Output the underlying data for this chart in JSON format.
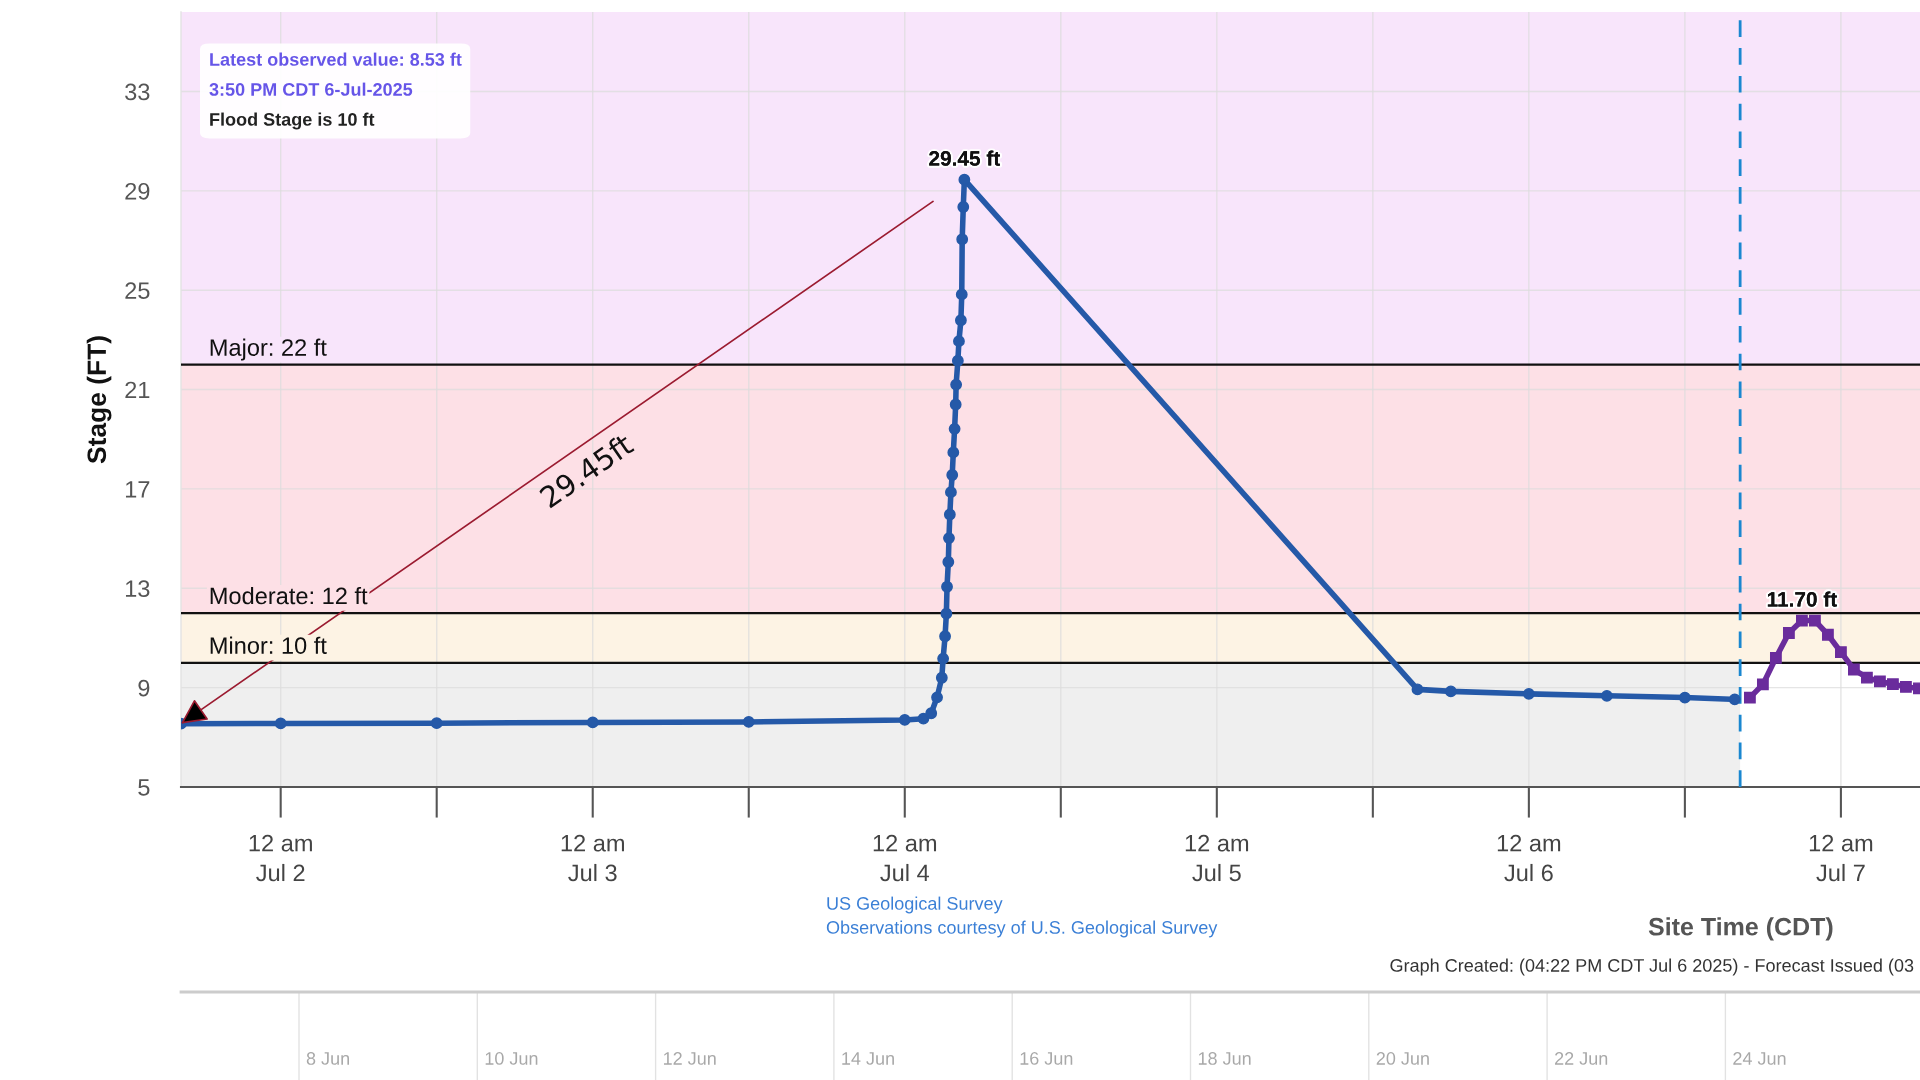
{
  "chart_data": [
    {
      "type": "line",
      "xlabel": "Site Time (CDT)",
      "ylabel": "Stage (FT)",
      "annotations": [
        "Latest observed value: 8.53 ft",
        "3:50 PM CDT 6-Jul-2025",
        "Flood Stage is 10 ft",
        "US Geological Survey",
        "Observations courtesy of U.S. Geological Survey",
        "Graph Created: (04:22 PM CDT Jul 6 2025) - Forecast Issued (03",
        "29.45ft"
      ],
      "series": [
        {
          "color": "#2559a8",
          "marker": "circle",
          "x": [
            "2025-07-01T16:20",
            "2025-07-02T00:00",
            "2025-07-02T12:00",
            "2025-07-03T00:00",
            "2025-07-03T12:00",
            "2025-07-04T00:00",
            "2025-07-04T01:26",
            "2025-07-04T02:02",
            "2025-07-04T02:29",
            "2025-07-04T02:51",
            "2025-07-04T02:57",
            "2025-07-04T03:06",
            "2025-07-04T03:12",
            "2025-07-04T03:15",
            "2025-07-04T03:21",
            "2025-07-04T03:24",
            "2025-07-04T03:28",
            "2025-07-04T03:33",
            "2025-07-04T03:39",
            "2025-07-04T03:44",
            "2025-07-04T03:50",
            "2025-07-04T03:55",
            "2025-07-04T03:57",
            "2025-07-04T04:05",
            "2025-07-04T04:10",
            "2025-07-04T04:19",
            "2025-07-04T04:23",
            "2025-07-04T04:25",
            "2025-07-04T04:30",
            "2025-07-04T04:35",
            "2025-07-05T15:26",
            "2025-07-05T18:00",
            "2025-07-06T00:00",
            "2025-07-06T06:00",
            "2025-07-06T12:00",
            "2025-07-06T15:50"
          ],
          "values": [
            7.55,
            7.56,
            7.57,
            7.6,
            7.62,
            7.7,
            7.75,
            7.97,
            8.61,
            9.4,
            10.17,
            11.07,
            11.98,
            13.06,
            14.06,
            15.02,
            15.97,
            16.87,
            17.56,
            18.47,
            19.42,
            20.4,
            21.2,
            22.16,
            22.95,
            23.79,
            24.83,
            27.05,
            28.35,
            29.45,
            8.93,
            8.85,
            8.75,
            8.67,
            8.6,
            8.53
          ],
          "value_labels": [
            null,
            null,
            null,
            null,
            null,
            null,
            null,
            null,
            null,
            null,
            null,
            null,
            null,
            null,
            null,
            null,
            null,
            null,
            null,
            null,
            null,
            null,
            null,
            null,
            null,
            null,
            null,
            null,
            null,
            "29.45 ft",
            null,
            null,
            null,
            null,
            null,
            null
          ]
        },
        {
          "color": "#6a2c9c",
          "marker": "square",
          "x": [
            "2025-07-06T17:00",
            "2025-07-06T18:00",
            "2025-07-06T19:00",
            "2025-07-06T20:00",
            "2025-07-06T21:00",
            "2025-07-06T22:00",
            "2025-07-06T23:00",
            "2025-07-07T00:00",
            "2025-07-07T01:00",
            "2025-07-07T02:00",
            "2025-07-07T03:00",
            "2025-07-07T04:00",
            "2025-07-07T05:00",
            "2025-07-07T06:00"
          ],
          "values": [
            8.6,
            9.13,
            10.2,
            11.2,
            11.7,
            11.7,
            11.13,
            10.43,
            9.73,
            9.4,
            9.25,
            9.14,
            9.03,
            8.97
          ],
          "value_labels": [
            null,
            null,
            null,
            null,
            "11.70 ft",
            null,
            null,
            null,
            null,
            null,
            null,
            null,
            null,
            null
          ]
        }
      ],
      "xlim": [
        "2025-07-01T16:20",
        "2025-07-07T06:05"
      ],
      "xticks": [
        {
          "value": "2025-07-02T00:00",
          "label": "12 am\nJul 2"
        },
        {
          "value": "2025-07-02T12:00",
          "label": null
        },
        {
          "value": "2025-07-03T00:00",
          "label": "12 am\nJul 3"
        },
        {
          "value": "2025-07-03T12:00",
          "label": null
        },
        {
          "value": "2025-07-04T00:00",
          "label": "12 am\nJul 4"
        },
        {
          "value": "2025-07-04T12:00",
          "label": null
        },
        {
          "value": "2025-07-05T00:00",
          "label": "12 am\nJul 5"
        },
        {
          "value": "2025-07-05T12:00",
          "label": null
        },
        {
          "value": "2025-07-06T00:00",
          "label": "12 am\nJul 6"
        },
        {
          "value": "2025-07-06T12:00",
          "label": null
        },
        {
          "value": "2025-07-07T00:00",
          "label": "12 am\nJul 7"
        }
      ],
      "ylim": [
        5,
        36.2
      ],
      "yticks": [
        5,
        9,
        13,
        17,
        21,
        25,
        29,
        33
      ],
      "grid": true,
      "ref_lines": [
        {
          "axis": "y",
          "value": 22,
          "label": "Major: 22 ft",
          "color": "#111111"
        },
        {
          "axis": "y",
          "value": 12,
          "label": "Moderate: 12 ft",
          "color": "#111111"
        },
        {
          "axis": "y",
          "value": 10,
          "label": "Minor: 10 ft",
          "color": "#111111"
        },
        {
          "axis": "x",
          "value": "2025-07-06T16:15",
          "color": "#1a87d0",
          "line_style": "dashed"
        }
      ],
      "bands": [
        {
          "axis": "x",
          "from": "2025-07-01T16:20",
          "to": "2025-07-06T16:15",
          "color": "#efefef"
        },
        {
          "axis": "y",
          "from": 10,
          "to": 12,
          "color": "#fdf3e4"
        },
        {
          "axis": "y",
          "from": 12,
          "to": 22,
          "color": "#fde0e6"
        },
        {
          "axis": "y",
          "from": 22,
          "to": 36.2,
          "color": "#f8e5fb"
        }
      ]
    },
    {
      "type": "other",
      "annotations": [
        "8 Jun",
        "10 Jun",
        "12 Jun",
        "14 Jun",
        "16 Jun",
        "18 Jun",
        "20 Jun",
        "22 Jun",
        "24 Jun"
      ]
    }
  ]
}
